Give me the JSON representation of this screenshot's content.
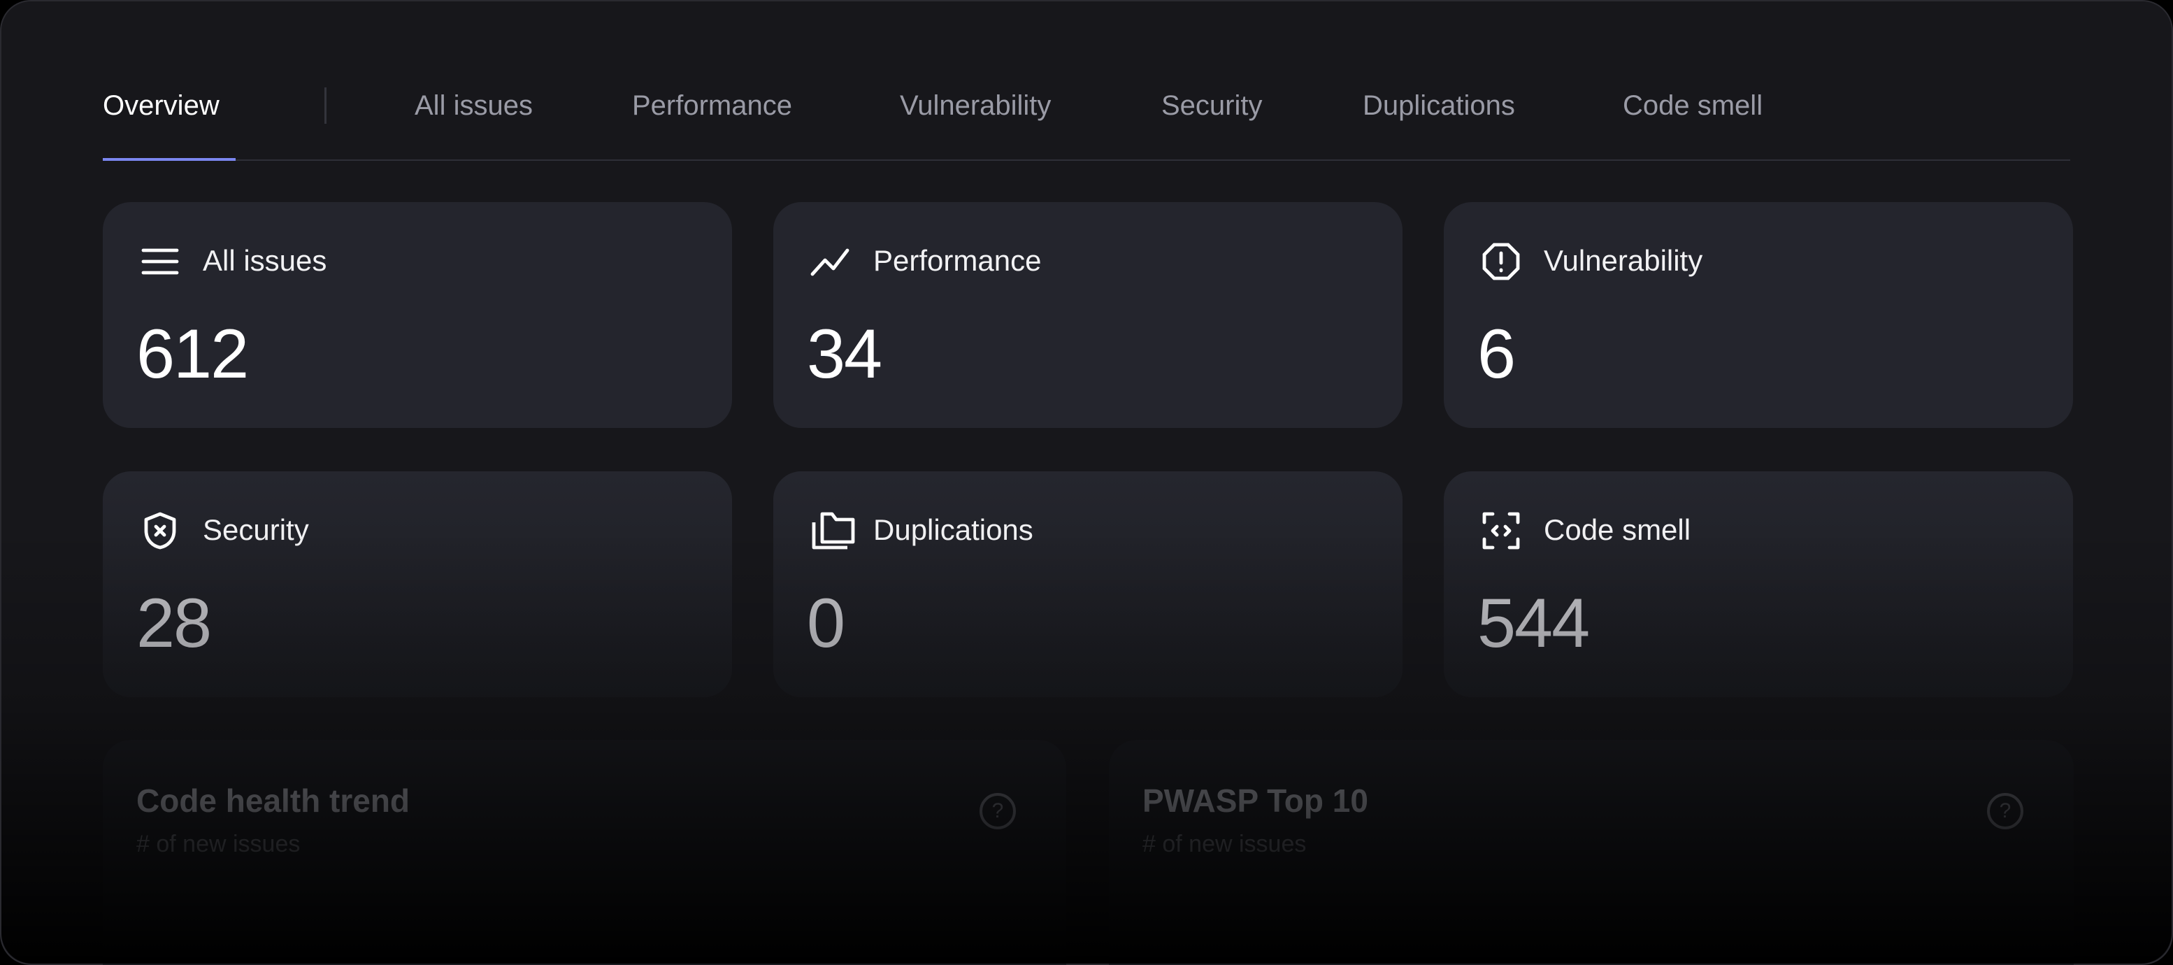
{
  "tabs": [
    {
      "label": "Overview",
      "active": true
    },
    {
      "label": "All issues"
    },
    {
      "label": "Performance"
    },
    {
      "label": "Vulnerability"
    },
    {
      "label": "Security"
    },
    {
      "label": "Duplications"
    },
    {
      "label": "Code smell"
    }
  ],
  "accent": "#7b86f0",
  "cards": [
    {
      "label": "All issues",
      "value": "612",
      "icon": "list-icon"
    },
    {
      "label": "Performance",
      "value": "34",
      "icon": "trend-line-icon"
    },
    {
      "label": "Vulnerability",
      "value": "6",
      "icon": "alert-octagon-icon"
    },
    {
      "label": "Security",
      "value": "28",
      "icon": "shield-x-icon"
    },
    {
      "label": "Duplications",
      "value": "0",
      "icon": "folders-icon"
    },
    {
      "label": "Code smell",
      "value": "544",
      "icon": "code-scan-icon"
    }
  ],
  "panels": [
    {
      "title": "Code health trend",
      "subtitle": "# of new issues",
      "help": "?"
    },
    {
      "title": "PWASP Top 10",
      "subtitle": "# of new issues",
      "help": "?"
    }
  ]
}
